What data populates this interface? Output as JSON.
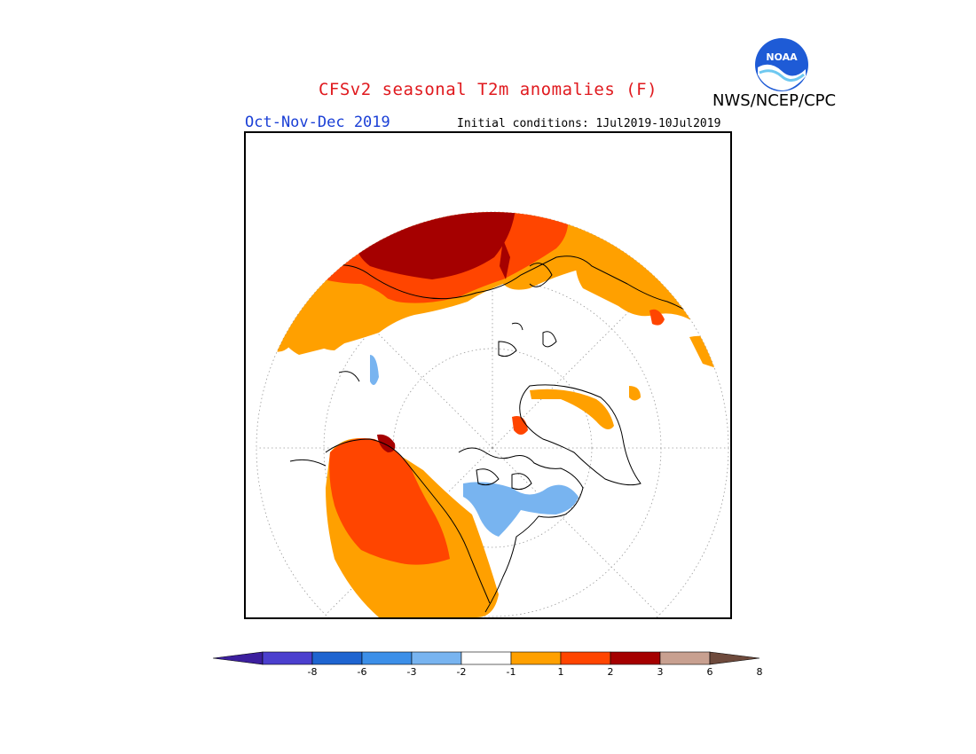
{
  "title": "CFSv2 seasonal T2m anomalies (F)",
  "org": "NWS/NCEP/CPC",
  "logo_text": "NOAA",
  "period": "Oct-Nov-Dec 2019",
  "initial_conditions": "Initial conditions: 1Jul2019-10Jul2019",
  "colors": {
    "title": "#e0191e",
    "period": "#1a3fd6"
  },
  "colorbar": {
    "labels": [
      "-8",
      "-6",
      "-3",
      "-2",
      "-1",
      "1",
      "2",
      "3",
      "6",
      "8"
    ],
    "colors": [
      "#3c1f9e",
      "#4b3fce",
      "#1e64d0",
      "#3c8fe8",
      "#78b4f0",
      "#ffffff",
      "#ffa000",
      "#ff4500",
      "#a50000",
      "#c8a090",
      "#6e4a3c"
    ]
  }
}
